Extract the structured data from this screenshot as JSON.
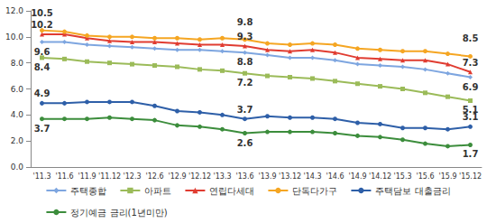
{
  "chart_data": {
    "type": "line",
    "categories": [
      "'11.3",
      "'11.6",
      "'11.9",
      "'11.12",
      "'12.3",
      "'12.6",
      "'12.9",
      "'12.12",
      "'13.3",
      "'13.6",
      "'13.9",
      "'13.12",
      "'14.3",
      "'14.6",
      "'14.9",
      "'14.12",
      "'15.3",
      "'15.6",
      "'15.9",
      "'15.12"
    ],
    "ylim": [
      0,
      12
    ],
    "yticks": [
      {
        "value": 0,
        "label": "0.0"
      },
      {
        "value": 2,
        "label": "2.0"
      },
      {
        "value": 4,
        "label": "4.0"
      },
      {
        "value": 6,
        "label": "6.0"
      },
      {
        "value": 8,
        "label": "8.0"
      },
      {
        "value": 10,
        "label": "10.0"
      },
      {
        "value": 12,
        "label": "12.0"
      }
    ],
    "grid": false,
    "legend": "bottom",
    "data_labels": true,
    "series": [
      {
        "name": "주택종합",
        "color": "#7ea6e0",
        "marker": "diamond",
        "values": [
          9.6,
          9.6,
          9.4,
          9.3,
          9.2,
          9.1,
          9.0,
          9.0,
          8.9,
          8.8,
          8.6,
          8.4,
          8.4,
          8.2,
          7.9,
          7.8,
          7.7,
          7.5,
          7.2,
          6.9
        ],
        "value_labels": [
          "9.6",
          null,
          null,
          null,
          null,
          null,
          null,
          null,
          null,
          "8.8",
          null,
          null,
          null,
          null,
          null,
          null,
          null,
          null,
          null,
          "6.9"
        ]
      },
      {
        "name": "아파트",
        "color": "#9bbb59",
        "marker": "rect",
        "values": [
          8.4,
          8.3,
          8.1,
          8.0,
          7.9,
          7.8,
          7.7,
          7.5,
          7.4,
          7.2,
          7.0,
          6.9,
          6.8,
          6.6,
          6.4,
          6.2,
          6.0,
          5.7,
          5.4,
          5.1
        ],
        "value_labels": [
          "8.4",
          null,
          null,
          null,
          null,
          null,
          null,
          null,
          null,
          "7.2",
          null,
          null,
          null,
          null,
          null,
          null,
          null,
          null,
          null,
          "5.1"
        ]
      },
      {
        "name": "연립다세대",
        "color": "#e03c31",
        "marker": "triangle",
        "values": [
          10.2,
          10.2,
          9.9,
          9.7,
          9.6,
          9.6,
          9.5,
          9.4,
          9.4,
          9.3,
          9.0,
          8.9,
          9.0,
          8.8,
          8.4,
          8.3,
          8.2,
          8.2,
          7.9,
          7.3
        ],
        "value_labels": [
          "10.2",
          null,
          null,
          null,
          null,
          null,
          null,
          null,
          null,
          "9.3",
          null,
          null,
          null,
          null,
          null,
          null,
          null,
          null,
          null,
          "7.3"
        ]
      },
      {
        "name": "단독다가구",
        "color": "#f5a623",
        "marker": "circle",
        "values": [
          10.5,
          10.4,
          10.1,
          10.0,
          10.0,
          9.9,
          9.9,
          9.8,
          9.9,
          9.8,
          9.5,
          9.4,
          9.5,
          9.4,
          9.1,
          9.0,
          8.9,
          8.9,
          8.7,
          8.5
        ],
        "value_labels": [
          "10.5",
          null,
          null,
          null,
          null,
          null,
          null,
          null,
          null,
          "9.8",
          null,
          null,
          null,
          null,
          null,
          null,
          null,
          null,
          null,
          "8.5"
        ]
      },
      {
        "name": "주택담보 대출금리",
        "color": "#2e5fa8",
        "marker": "circle",
        "values": [
          4.9,
          4.9,
          5.0,
          5.0,
          5.0,
          4.7,
          4.3,
          4.2,
          4.0,
          3.7,
          3.9,
          3.8,
          3.8,
          3.7,
          3.4,
          3.3,
          3.0,
          3.0,
          2.9,
          3.1
        ],
        "value_labels": [
          "4.9",
          null,
          null,
          null,
          null,
          null,
          null,
          null,
          null,
          "3.7",
          null,
          null,
          null,
          null,
          null,
          null,
          null,
          null,
          null,
          "3.1"
        ]
      },
      {
        "name": "정기예금 금리(1년미만)",
        "color": "#3c8d3c",
        "marker": "circle",
        "values": [
          3.7,
          3.7,
          3.7,
          3.8,
          3.7,
          3.6,
          3.2,
          3.1,
          2.9,
          2.6,
          2.7,
          2.7,
          2.7,
          2.6,
          2.4,
          2.3,
          2.1,
          1.8,
          1.6,
          1.7
        ],
        "value_labels": [
          "3.7",
          null,
          null,
          null,
          null,
          null,
          null,
          null,
          null,
          "2.6",
          null,
          null,
          null,
          null,
          null,
          null,
          null,
          null,
          null,
          "1.7"
        ]
      }
    ]
  }
}
